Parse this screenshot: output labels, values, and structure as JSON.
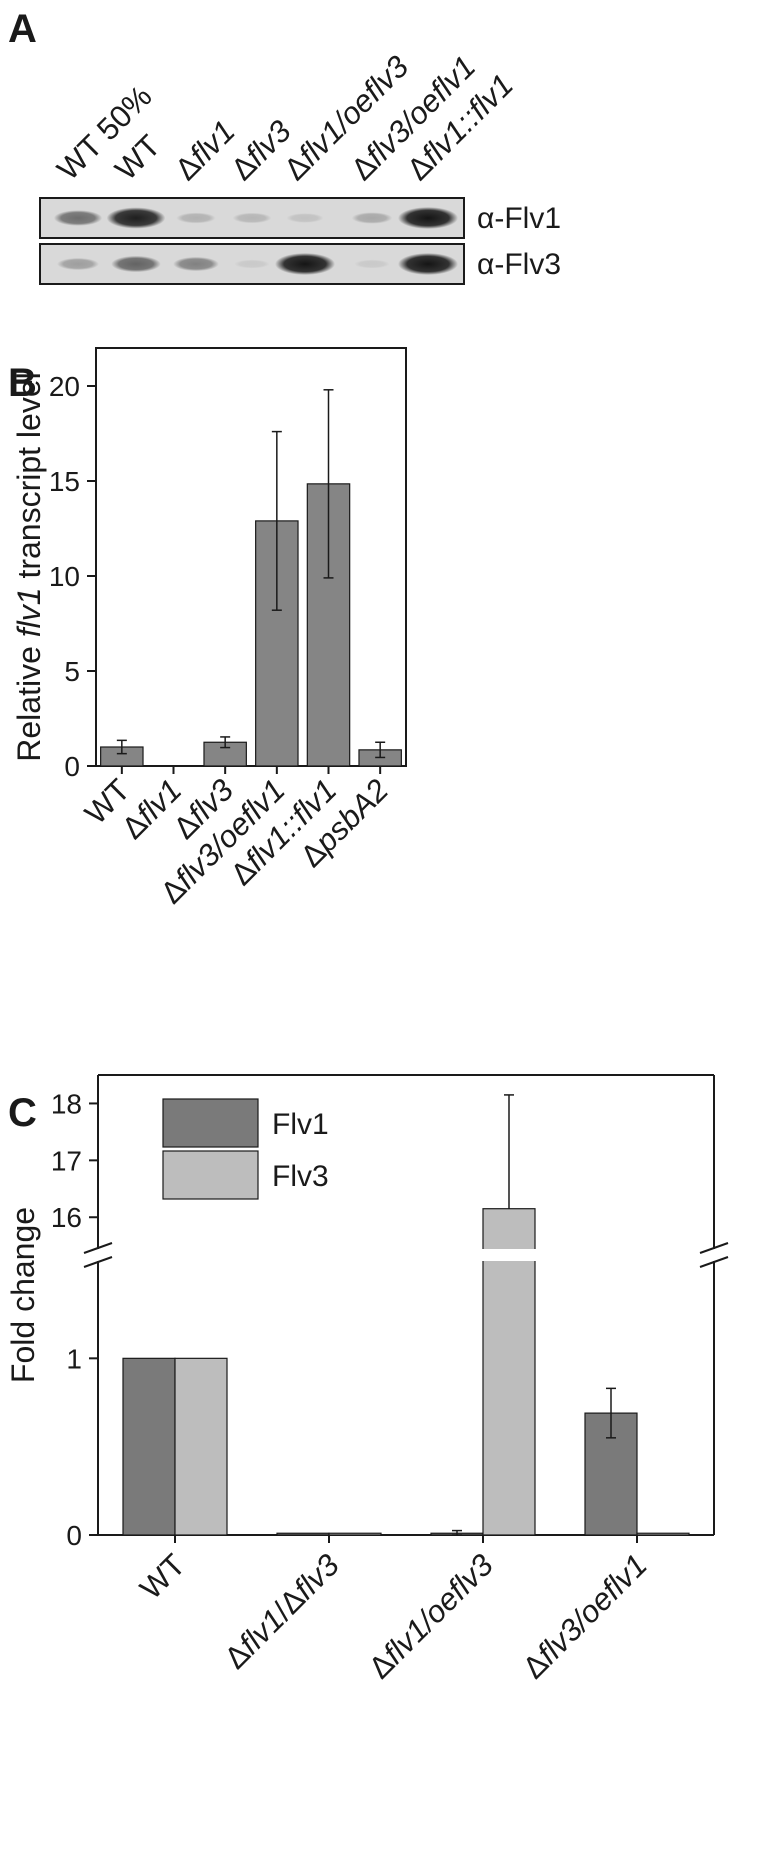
{
  "panel_A": {
    "letter": "A",
    "lanes": [
      {
        "prefix": "",
        "italic": "",
        "suffix": "WT 50%"
      },
      {
        "prefix": "",
        "italic": "",
        "suffix": "WT"
      },
      {
        "prefix": "Δ",
        "italic": "flv1",
        "suffix": ""
      },
      {
        "prefix": "Δ",
        "italic": "flv3",
        "suffix": ""
      },
      {
        "prefix": "Δ",
        "italic": "flv1/oeflv3",
        "suffix": ""
      },
      {
        "prefix": "Δ",
        "italic": "flv3/oeflv1",
        "suffix": ""
      },
      {
        "prefix": "Δ",
        "italic": "flv1::flv1",
        "suffix": ""
      }
    ],
    "blots": [
      {
        "label": "α-Flv1",
        "band_intensity": [
          0.55,
          0.95,
          0.2,
          0.18,
          0.12,
          0.25,
          1.0
        ]
      },
      {
        "label": "α-Flv3",
        "band_intensity": [
          0.3,
          0.6,
          0.45,
          0.05,
          1.0,
          0.05,
          1.0
        ]
      }
    ],
    "colors": {
      "blot_bg": "#d9d9d9",
      "band": "#151515"
    }
  },
  "chart_data": [
    {
      "panel": "B",
      "type": "bar",
      "ylabel_prefix": "Relative ",
      "ylabel_italic": "flv1",
      "ylabel_suffix": " transcript level",
      "ylim": [
        0,
        22
      ],
      "yticks": [
        "0",
        "5",
        "10",
        "15",
        "20"
      ],
      "ytick_values": [
        0,
        5,
        10,
        15,
        20
      ],
      "categories": [
        {
          "prefix": "",
          "italic": "",
          "suffix": "WT"
        },
        {
          "prefix": "Δ",
          "italic": "flv1",
          "suffix": ""
        },
        {
          "prefix": "Δ",
          "italic": "flv3",
          "suffix": ""
        },
        {
          "prefix": "Δ",
          "italic": "flv3/oeflv1",
          "suffix": ""
        },
        {
          "prefix": "Δ",
          "italic": "flv1::flv1",
          "suffix": ""
        },
        {
          "prefix": "Δ",
          "italic": "psbA2",
          "suffix": ""
        }
      ],
      "values": [
        1.0,
        0.0,
        1.25,
        12.9,
        14.85,
        0.85
      ],
      "errors": [
        0.35,
        0.0,
        0.28,
        4.7,
        4.95,
        0.4
      ],
      "bar_color": "#858585"
    },
    {
      "panel": "C",
      "type": "bar",
      "ylabel": "Fold change",
      "axis_break": true,
      "ylim_lower": [
        0,
        1.5
      ],
      "ylim_upper": [
        15.6,
        18.5
      ],
      "yticks_lower": [
        "0",
        "1"
      ],
      "ytick_values_lower": [
        0,
        1
      ],
      "yticks_upper": [
        "16",
        "17",
        "18"
      ],
      "ytick_values_upper": [
        16,
        17,
        18
      ],
      "categories": [
        {
          "prefix": "",
          "italic": "",
          "suffix": "WT"
        },
        {
          "prefix": "Δ",
          "italic": "flv1",
          "suffix": "/Δ",
          "italic2": "flv3"
        },
        {
          "prefix": "Δ",
          "italic": "flv1/oeflv3",
          "suffix": ""
        },
        {
          "prefix": "Δ",
          "italic": "flv3/oeflv1",
          "suffix": ""
        }
      ],
      "series": [
        {
          "name": "Flv1",
          "values": [
            1.0,
            0.01,
            0.01,
            0.69
          ],
          "errors": [
            0,
            0,
            0.015,
            0.14
          ],
          "color": "#7a7a7a"
        },
        {
          "name": "Flv3",
          "values": [
            1.0,
            0.01,
            16.15,
            0.01
          ],
          "errors": [
            0,
            0,
            2.0,
            0
          ],
          "color": "#bdbdbd"
        }
      ],
      "legend_position": "top-left"
    }
  ]
}
